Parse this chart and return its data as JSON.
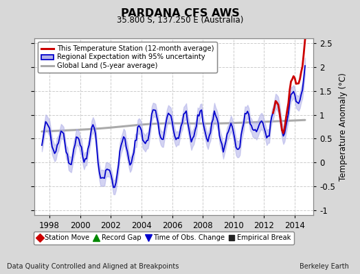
{
  "title": "PARDANA CFS AWS",
  "subtitle": "35.800 S, 137.250 E (Australia)",
  "ylabel": "Temperature Anomaly (°C)",
  "xlabel_left": "Data Quality Controlled and Aligned at Breakpoints",
  "xlabel_right": "Berkeley Earth",
  "ylim": [
    -1.1,
    2.6
  ],
  "xlim": [
    1997.0,
    2015.2
  ],
  "yticks": [
    -1,
    -0.5,
    0,
    0.5,
    1,
    1.5,
    2,
    2.5
  ],
  "xticks": [
    1998,
    2000,
    2002,
    2004,
    2006,
    2008,
    2010,
    2012,
    2014
  ],
  "bg_color": "#d8d8d8",
  "plot_bg_color": "#ffffff",
  "grid_color": "#cccccc",
  "regional_color": "#0000cc",
  "regional_fill_color": "#b0b0e8",
  "station_color": "#cc0000",
  "global_color": "#aaaaaa",
  "legend1_labels": [
    "This Temperature Station (12-month average)",
    "Regional Expectation with 95% uncertainty",
    "Global Land (5-year average)"
  ],
  "legend2_labels": [
    "Station Move",
    "Record Gap",
    "Time of Obs. Change",
    "Empirical Break"
  ],
  "legend2_colors": [
    "#cc0000",
    "#008800",
    "#0000cc",
    "#222222"
  ],
  "legend2_markers": [
    "D",
    "^",
    "v",
    "s"
  ]
}
